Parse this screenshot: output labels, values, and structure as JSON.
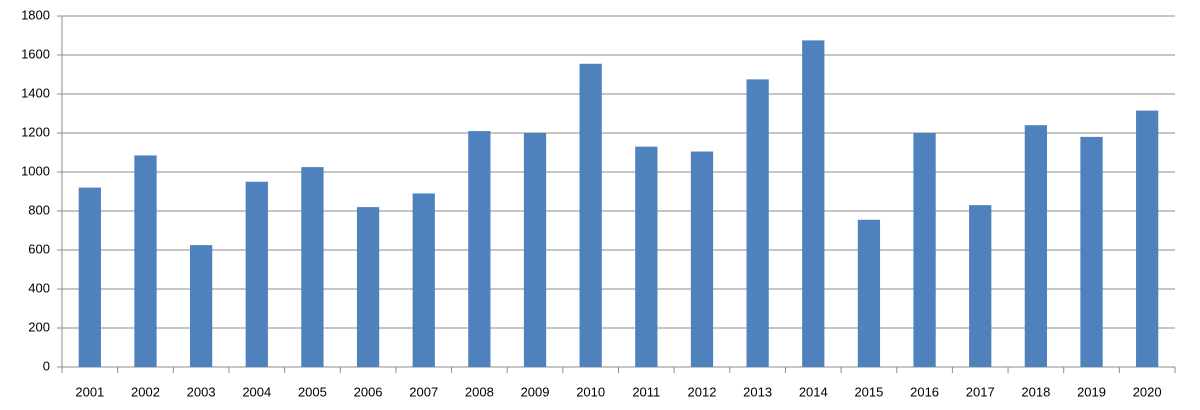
{
  "chart_data": {
    "type": "bar",
    "categories": [
      "2001",
      "2002",
      "2003",
      "2004",
      "2005",
      "2006",
      "2007",
      "2008",
      "2009",
      "2010",
      "2011",
      "2012",
      "2013",
      "2014",
      "2015",
      "2016",
      "2017",
      "2018",
      "2019",
      "2020"
    ],
    "values": [
      920,
      1085,
      625,
      950,
      1025,
      820,
      890,
      1210,
      1200,
      1555,
      1130,
      1105,
      1475,
      1675,
      755,
      1200,
      830,
      1240,
      1180,
      1315
    ],
    "color": "#4f81bd",
    "ylim": [
      0,
      1800
    ],
    "yticks": [
      0,
      200,
      400,
      600,
      800,
      1000,
      1200,
      1400,
      1600,
      1800
    ],
    "grid": true
  }
}
